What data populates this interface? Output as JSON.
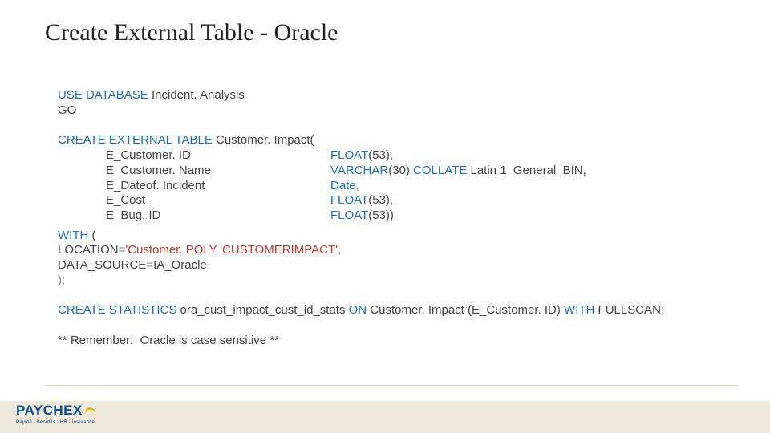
{
  "title": "Create External Table - Oracle",
  "colors": {
    "keyword": "#1f6fbf",
    "string": "#c0392b",
    "text": "#444444",
    "gray": "#888888",
    "divider": "#d9d4c8",
    "footer_bg": "#efe9dc",
    "logo_blue": "#0a4f9c",
    "logo_yellow": "#e7b500",
    "background": "#ffffff"
  },
  "typography": {
    "title_family": "Times New Roman",
    "title_size_pt": 24,
    "code_family": "Arial",
    "code_size_pt": 11
  },
  "sql": {
    "use_kw": "USE DATABASE",
    "use_db": " Incident. Analysis",
    "go": "GO",
    "create_ext_kw": "CREATE EXTERNAL TABLE",
    "create_ext_name": " Customer. Impact(",
    "columns": [
      {
        "name": "E_Customer. ID",
        "type_kw": "FLOAT",
        "type_rest": "(53),"
      },
      {
        "name": "E_Customer. Name",
        "type_kw": "VARCHAR",
        "type_rest": "(30) ",
        "collate_kw": "COLLATE",
        "collate_rest": " Latin 1_General_BIN,"
      },
      {
        "name": "E_Dateof. Incident",
        "type_kw": "Date",
        "type_rest": ","
      },
      {
        "name": "E_Cost",
        "type_kw": "FLOAT",
        "type_rest": "(53),"
      },
      {
        "name": "E_Bug. ID",
        "type_kw": "FLOAT",
        "type_rest": "(53))"
      }
    ],
    "with_kw": "WITH",
    "with_open": " (",
    "location_key": "LOCATION",
    "eq": "=",
    "location_val": "'Customer. POLY. CUSTOMERIMPACT'",
    "comma": ",",
    "ds_key": "DATA_SOURCE",
    "ds_val": "IA_Oracle",
    "close": ");",
    "stats_kw1": "CREATE STATISTICS",
    "stats_name": " ora_cust_impact_cust_id_stats ",
    "stats_on": "ON",
    "stats_target": " Customer. Impact (E_Customer. ID) ",
    "stats_with": "WITH",
    "stats_full": " FULLSCAN",
    "semi": ";",
    "note": "** Remember:  Oracle is case sensitive **"
  },
  "logo": {
    "main": "PAYCHEX",
    "tagline": "Payroll · Benefits · HR · Insurance"
  }
}
